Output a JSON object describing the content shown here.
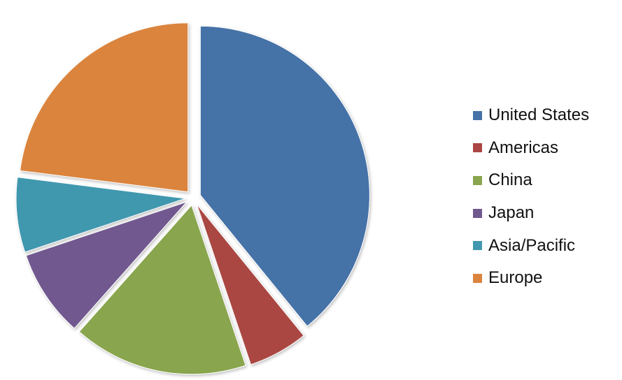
{
  "chart_data": {
    "type": "pie",
    "title": "",
    "legend_position": "right",
    "start_angle_deg": 0,
    "exploded": true,
    "slices": [
      {
        "label": "United States",
        "value": 40.5,
        "color": "#4572A7"
      },
      {
        "label": "Americas",
        "value": 5.9,
        "color": "#AA4643"
      },
      {
        "label": "China",
        "value": 17.3,
        "color": "#89A54E"
      },
      {
        "label": "Japan",
        "value": 8.6,
        "color": "#71588F"
      },
      {
        "label": "Asia/Pacific",
        "value": 7.4,
        "color": "#4198AF"
      },
      {
        "label": "Europe",
        "value": 23.8,
        "color": "#DB843D"
      }
    ]
  }
}
